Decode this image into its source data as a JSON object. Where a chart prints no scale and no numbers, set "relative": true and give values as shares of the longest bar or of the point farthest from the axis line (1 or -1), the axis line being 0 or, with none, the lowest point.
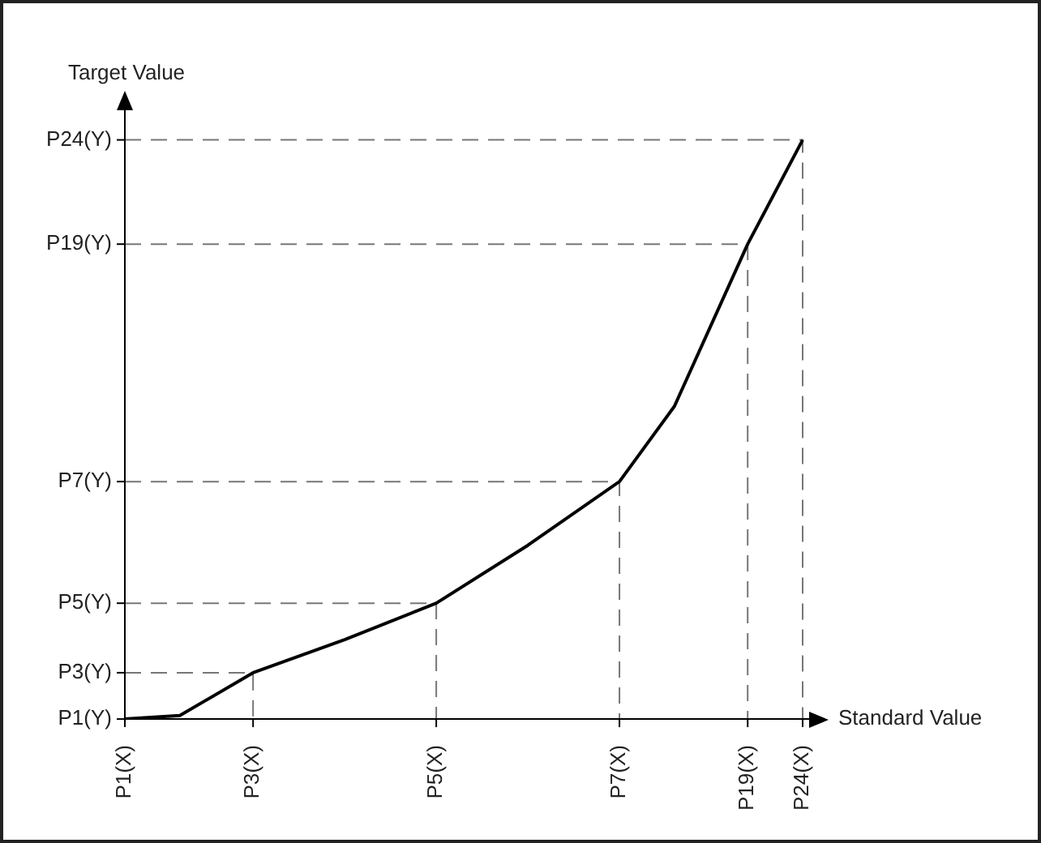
{
  "chart_data": {
    "type": "line",
    "relative": true,
    "xlabel": "Standard Value",
    "ylabel": "Target Value",
    "marker": "none",
    "categories": [
      "P1(X)",
      null,
      null,
      null,
      null,
      null,
      null,
      "P3(X)",
      null,
      null,
      null,
      null,
      null,
      null,
      null,
      null,
      null,
      "P5(X)",
      null,
      null,
      null,
      null,
      null,
      null,
      null,
      null,
      null,
      "P7(X)",
      null,
      null,
      null,
      null,
      null,
      null,
      "P19(X)",
      null,
      null,
      "P24(X)"
    ],
    "annotations": [
      "P1(Y)",
      "P3(Y)",
      "P5(Y)",
      "P7(Y)",
      "P19(Y)",
      "P24(Y)"
    ],
    "series": [
      {
        "color": "#000000",
        "values": [
          0,
          null,
          null,
          0.006,
          null,
          null,
          null,
          0.08,
          null,
          null,
          null,
          null,
          0.137,
          null,
          null,
          null,
          null,
          0.2,
          null,
          null,
          null,
          null,
          0.3,
          null,
          null,
          null,
          null,
          0.41,
          null,
          null,
          0.54,
          null,
          null,
          null,
          0.82,
          null,
          null,
          1.0
        ]
      }
    ]
  }
}
